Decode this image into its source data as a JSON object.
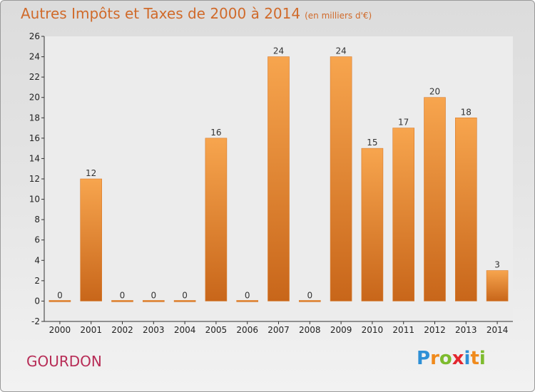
{
  "header": {
    "title": "Autres Impôts et Taxes de 2000 à 2014",
    "subtitle": "(en milliers d'€)"
  },
  "footer": {
    "place": "GOURDON",
    "brand": "Proxiti",
    "brand_letters": [
      "P",
      "r",
      "o",
      "x",
      "i",
      "t",
      "i"
    ],
    "brand_colors": [
      "#2d8fd6",
      "#f08a1c",
      "#7dbb2e",
      "#e3262e",
      "#2d8fd6",
      "#f08a1c",
      "#7dbb2e"
    ]
  },
  "colors": {
    "bar_light": "#f7a54e",
    "bar_dark": "#c8661a",
    "bar_edge": "#d97a2a",
    "title": "#d06a2a",
    "place": "#b72c56"
  },
  "chart_data": {
    "type": "bar",
    "title": "Autres Impôts et Taxes de 2000 à 2014",
    "subtitle": "(en milliers d'€)",
    "xlabel": "",
    "ylabel": "",
    "categories": [
      "2000",
      "2001",
      "2002",
      "2003",
      "2004",
      "2005",
      "2006",
      "2007",
      "2008",
      "2009",
      "2010",
      "2011",
      "2012",
      "2013",
      "2014"
    ],
    "values": [
      0,
      12,
      0,
      0,
      0,
      16,
      0,
      24,
      0,
      24,
      15,
      17,
      20,
      18,
      3
    ],
    "data_labels": [
      "0",
      "12",
      "0",
      "0",
      "0",
      "16",
      "0",
      "24",
      "0",
      "24",
      "15",
      "17",
      "20",
      "18",
      "3"
    ],
    "ylim": [
      -2,
      26
    ],
    "yticks": [
      -2,
      0,
      2,
      4,
      6,
      8,
      10,
      12,
      14,
      16,
      18,
      20,
      22,
      24,
      26
    ],
    "ytick_labels": [
      "-2",
      "0",
      "2",
      "4",
      "6",
      "8",
      "10",
      "12",
      "14",
      "16",
      "18",
      "20",
      "22",
      "24",
      "26"
    ],
    "grid": false,
    "legend": "none"
  }
}
